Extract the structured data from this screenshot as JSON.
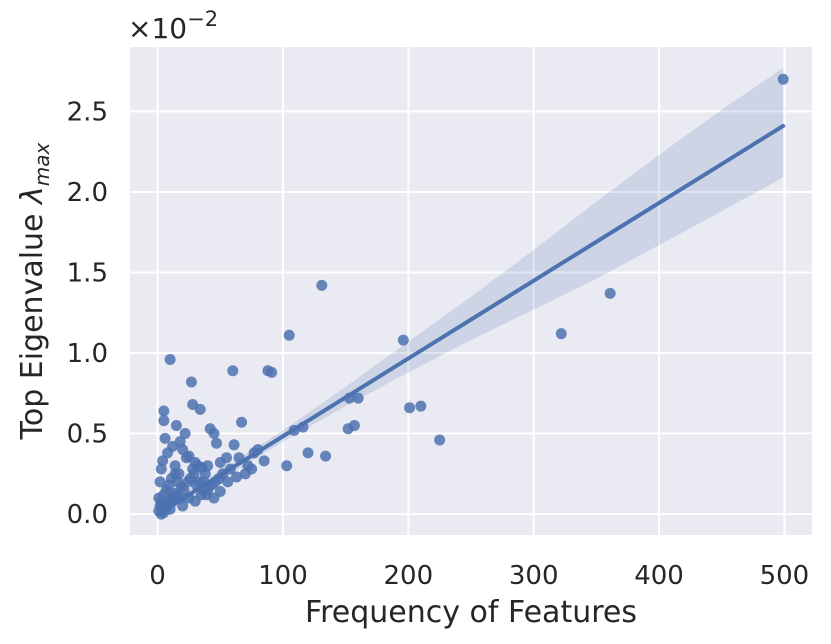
{
  "chart_data": {
    "type": "scatter",
    "title": "",
    "xlabel": "Frequency of Features",
    "ylabel_main": "Top Eigenvalue ",
    "ylabel_symbol": "λ",
    "ylabel_subscript": "max",
    "offset_prefix": "×10",
    "offset_exponent": "−2",
    "xlim": [
      -22,
      522
    ],
    "ylim": [
      -0.13,
      2.9
    ],
    "y_scale_factor": 0.01,
    "grid": true,
    "legend": "none",
    "x_ticks": [
      0,
      100,
      200,
      300,
      400,
      500
    ],
    "x_tick_labels": [
      "0",
      "100",
      "200",
      "300",
      "400",
      "500"
    ],
    "y_ticks": [
      0.0,
      0.5,
      1.0,
      1.5,
      2.0,
      2.5
    ],
    "y_tick_labels": [
      "0.0",
      "0.5",
      "1.0",
      "1.5",
      "2.0",
      "2.5"
    ],
    "colors": {
      "points": "#4c72b0",
      "line": "#4c72b0",
      "band": "#4c72b0",
      "plot_bg": "#eaeaf2",
      "grid": "#ffffff"
    },
    "series": [
      {
        "kind": "points",
        "x": [
          499,
          361,
          322,
          196,
          131,
          105,
          88,
          91,
          60,
          10,
          27,
          34,
          28,
          5,
          5,
          15,
          201,
          210,
          225,
          153,
          157,
          152,
          160,
          120,
          116,
          109,
          134,
          103,
          67,
          61,
          42,
          45,
          47,
          77,
          80,
          85,
          65,
          72,
          55,
          50,
          58,
          40,
          38,
          35,
          30,
          25,
          20,
          18,
          22,
          12,
          8,
          6,
          4,
          3,
          2,
          1,
          1,
          2,
          3,
          5,
          7,
          9,
          11,
          14,
          16,
          19,
          21,
          24,
          26,
          29,
          31,
          33,
          36,
          39,
          43,
          46,
          49,
          52,
          56,
          63,
          70,
          75,
          10,
          12,
          15,
          18,
          8,
          6,
          4,
          20,
          25,
          30,
          35,
          40,
          45,
          50,
          14,
          17,
          23,
          28,
          32,
          37,
          3,
          5,
          7,
          9,
          11,
          13
        ],
        "y": [
          2.7,
          1.37,
          1.12,
          1.08,
          1.42,
          1.11,
          0.89,
          0.88,
          0.89,
          0.96,
          0.82,
          0.65,
          0.68,
          0.64,
          0.58,
          0.55,
          0.66,
          0.67,
          0.46,
          0.72,
          0.55,
          0.53,
          0.72,
          0.38,
          0.54,
          0.52,
          0.36,
          0.3,
          0.57,
          0.43,
          0.53,
          0.5,
          0.44,
          0.38,
          0.4,
          0.33,
          0.35,
          0.3,
          0.35,
          0.32,
          0.28,
          0.3,
          0.25,
          0.29,
          0.32,
          0.36,
          0.4,
          0.45,
          0.5,
          0.42,
          0.38,
          0.47,
          0.33,
          0.28,
          0.2,
          0.1,
          0.02,
          0.05,
          0.08,
          0.12,
          0.15,
          0.18,
          0.22,
          0.25,
          0.2,
          0.17,
          0.15,
          0.2,
          0.22,
          0.25,
          0.18,
          0.2,
          0.15,
          0.12,
          0.18,
          0.2,
          0.22,
          0.25,
          0.2,
          0.23,
          0.25,
          0.28,
          0.03,
          0.08,
          0.12,
          0.1,
          0.06,
          0.04,
          0.02,
          0.05,
          0.1,
          0.08,
          0.12,
          0.15,
          0.1,
          0.14,
          0.3,
          0.25,
          0.35,
          0.28,
          0.3,
          0.2,
          0.0,
          0.01,
          0.04,
          0.07,
          0.1,
          0.13
        ]
      },
      {
        "kind": "regression",
        "x": [
          0,
          499
        ],
        "y": [
          0.0,
          2.41
        ]
      },
      {
        "kind": "ci_band",
        "x": [
          0,
          50,
          100,
          150,
          200,
          250,
          300,
          350,
          400,
          450,
          499
        ],
        "upper": [
          0.03,
          0.27,
          0.52,
          0.79,
          1.07,
          1.35,
          1.64,
          1.94,
          2.23,
          2.51,
          2.77
        ],
        "lower": [
          -0.03,
          0.21,
          0.45,
          0.67,
          0.88,
          1.08,
          1.27,
          1.46,
          1.67,
          1.88,
          2.09
        ]
      }
    ]
  }
}
